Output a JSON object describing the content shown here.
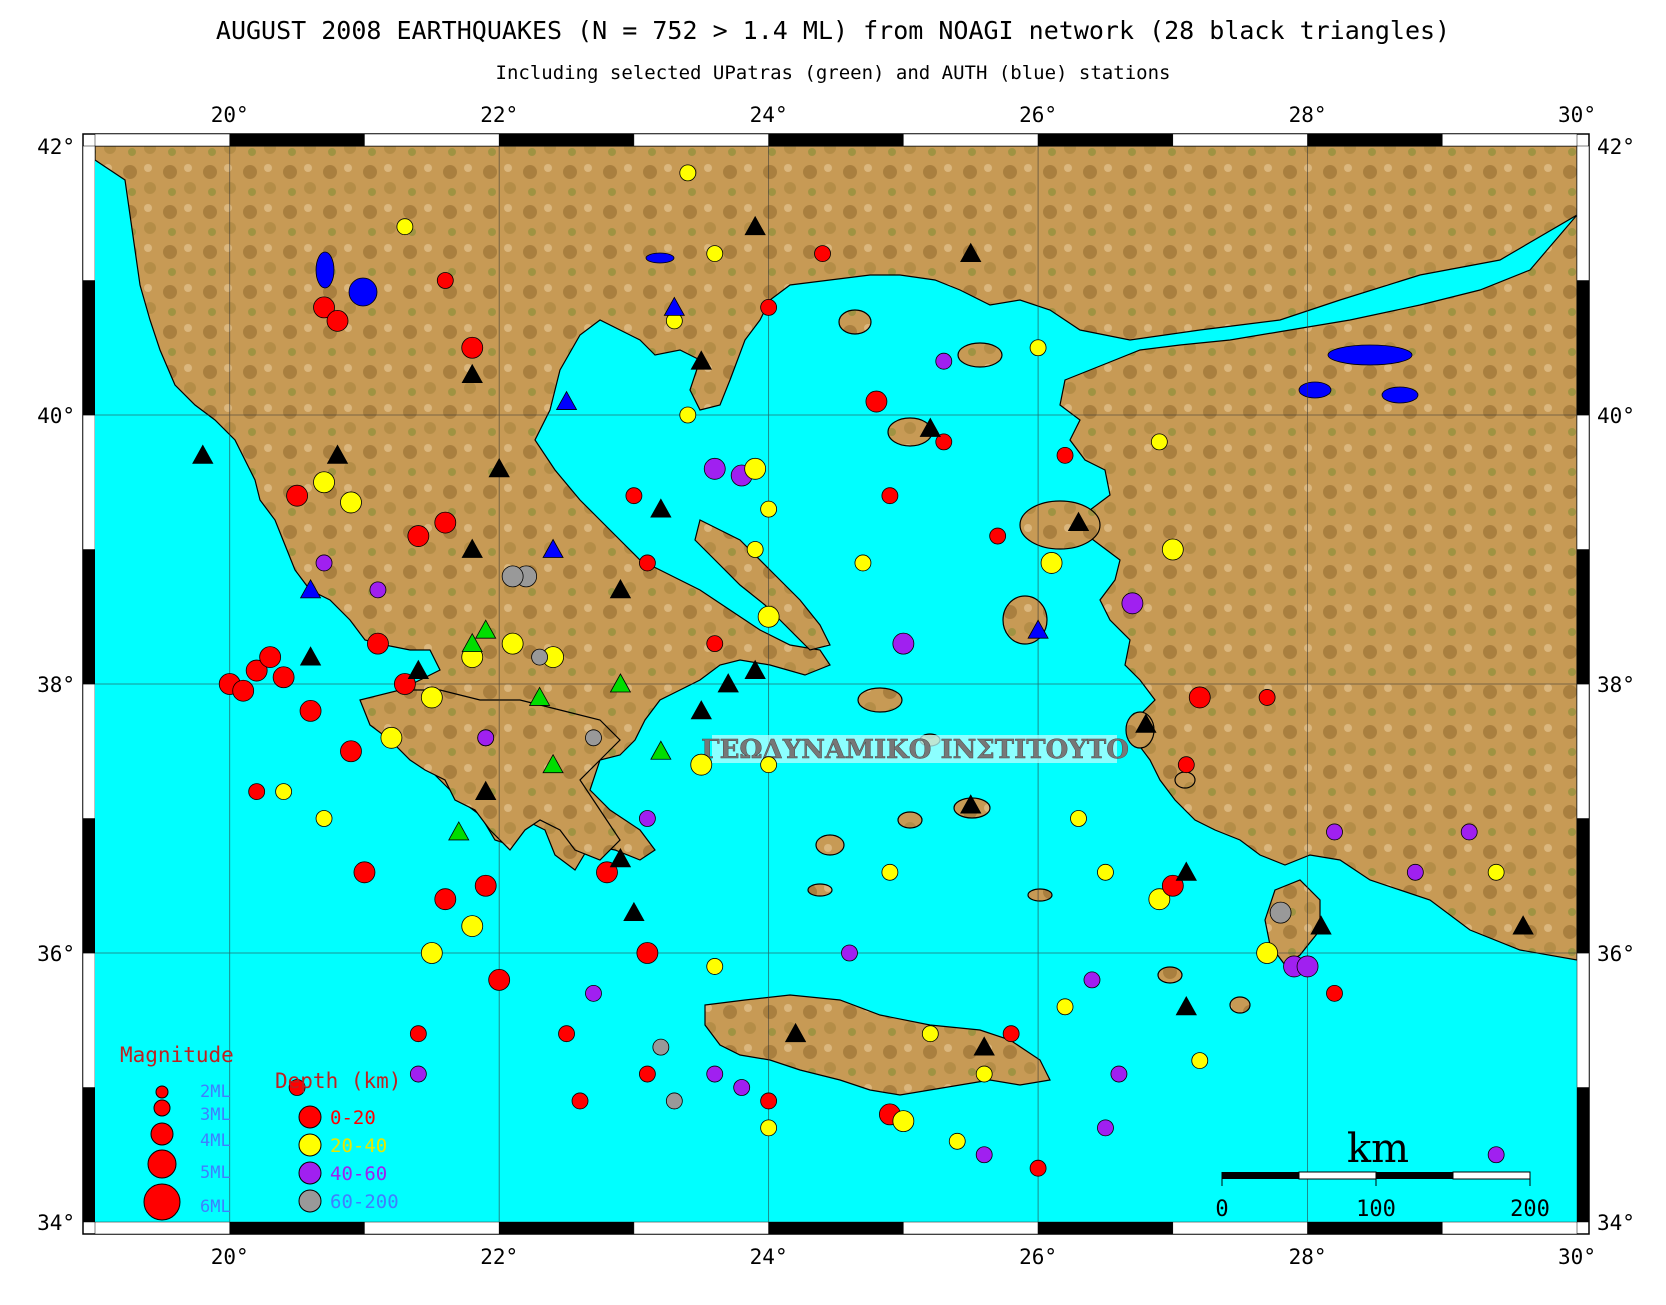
{
  "title": "AUGUST 2008 EARTHQUAKES (N = 752 > 1.4 ML) from NOAGI network (28 black triangles)",
  "subtitle": "Including selected UPatras (green) and AUTH (blue) stations",
  "watermark": "ΓΕΩΔΥΝΑΜΙΚΟ ΙΝΣΤΙΤΟΥΤΟ",
  "axes": {
    "lon_ticks": [
      "20°",
      "22°",
      "24°",
      "26°",
      "28°",
      "30°"
    ],
    "lat_ticks": [
      "42°",
      "40°",
      "38°",
      "36°",
      "34°"
    ],
    "lon_range": [
      19,
      30
    ],
    "lat_range": [
      34,
      42
    ]
  },
  "legend": {
    "magnitude_title": "Magnitude",
    "magnitudes": [
      "2ML",
      "3ML",
      "4ML",
      "5ML",
      "6ML"
    ],
    "depth_title": "Depth (km)",
    "depths": [
      {
        "label": "0-20",
        "color": "#ff0000"
      },
      {
        "label": "20-40",
        "color": "#ffff00"
      },
      {
        "label": "40-60",
        "color": "#a020f0"
      },
      {
        "label": "60-200",
        "color": "#999999"
      }
    ]
  },
  "scale_bar": {
    "unit": "km",
    "labels": [
      "0",
      "100",
      "200"
    ]
  },
  "colors": {
    "sea": "#00ffff",
    "land": "#c8a060",
    "noa_station": "#000000",
    "upatras_station": "#00dd00",
    "auth_station": "#0000ff"
  },
  "chart_data": {
    "type": "scatter",
    "title": "AUGUST 2008 EARTHQUAKES (N = 752 > 1.4 ML) from NOAGI network (28 black triangles)",
    "xlim": [
      19,
      30
    ],
    "ylim": [
      34,
      42
    ],
    "stations_noa": [
      [
        19.8,
        39.7
      ],
      [
        20.8,
        39.7
      ],
      [
        21.8,
        40.3
      ],
      [
        22.0,
        39.6
      ],
      [
        21.8,
        39.0
      ],
      [
        22.9,
        38.7
      ],
      [
        23.2,
        39.3
      ],
      [
        23.5,
        40.4
      ],
      [
        23.9,
        41.4
      ],
      [
        25.5,
        41.2
      ],
      [
        25.2,
        39.9
      ],
      [
        26.3,
        39.2
      ],
      [
        20.6,
        38.2
      ],
      [
        21.4,
        38.1
      ],
      [
        23.5,
        37.8
      ],
      [
        23.7,
        38.0
      ],
      [
        23.9,
        38.1
      ],
      [
        26.8,
        37.7
      ],
      [
        21.9,
        37.2
      ],
      [
        22.9,
        36.7
      ],
      [
        23.0,
        36.3
      ],
      [
        25.5,
        37.1
      ],
      [
        27.1,
        36.6
      ],
      [
        24.2,
        35.4
      ],
      [
        25.6,
        35.3
      ],
      [
        27.1,
        35.6
      ],
      [
        28.1,
        36.2
      ],
      [
        29.6,
        36.2
      ]
    ],
    "stations_upatras": [
      [
        21.8,
        38.3
      ],
      [
        21.9,
        38.4
      ],
      [
        22.3,
        37.9
      ],
      [
        22.4,
        37.4
      ],
      [
        22.9,
        38.0
      ],
      [
        23.2,
        37.5
      ],
      [
        21.7,
        36.9
      ]
    ],
    "stations_auth": [
      [
        20.6,
        38.7
      ],
      [
        22.4,
        39.0
      ],
      [
        22.5,
        40.1
      ],
      [
        23.3,
        40.8
      ],
      [
        26.0,
        38.4
      ]
    ],
    "events": [
      {
        "lon": 20.0,
        "lat": 38.0,
        "mag": 3,
        "depth": "0-20"
      },
      {
        "lon": 20.2,
        "lat": 38.1,
        "mag": 3,
        "depth": "0-20"
      },
      {
        "lon": 20.3,
        "lat": 38.2,
        "mag": 3,
        "depth": "0-20"
      },
      {
        "lon": 20.1,
        "lat": 37.95,
        "mag": 3,
        "depth": "0-20"
      },
      {
        "lon": 20.4,
        "lat": 38.05,
        "mag": 3,
        "depth": "0-20"
      },
      {
        "lon": 20.6,
        "lat": 37.8,
        "mag": 3,
        "depth": "0-20"
      },
      {
        "lon": 20.9,
        "lat": 37.5,
        "mag": 3,
        "depth": "0-20"
      },
      {
        "lon": 21.2,
        "lat": 37.6,
        "mag": 3,
        "depth": "20-40"
      },
      {
        "lon": 21.5,
        "lat": 37.9,
        "mag": 3,
        "depth": "20-40"
      },
      {
        "lon": 21.8,
        "lat": 38.2,
        "mag": 3,
        "depth": "20-40"
      },
      {
        "lon": 21.1,
        "lat": 38.3,
        "mag": 3,
        "depth": "0-20"
      },
      {
        "lon": 21.3,
        "lat": 38.0,
        "mag": 3,
        "depth": "0-20"
      },
      {
        "lon": 21.9,
        "lat": 37.6,
        "mag": 2,
        "depth": "0-20"
      },
      {
        "lon": 22.1,
        "lat": 38.3,
        "mag": 3,
        "depth": "20-40"
      },
      {
        "lon": 22.4,
        "lat": 38.2,
        "mag": 3,
        "depth": "20-40"
      },
      {
        "lon": 20.5,
        "lat": 39.4,
        "mag": 3,
        "depth": "0-20"
      },
      {
        "lon": 20.7,
        "lat": 39.5,
        "mag": 3,
        "depth": "20-40"
      },
      {
        "lon": 20.9,
        "lat": 39.35,
        "mag": 3,
        "depth": "20-40"
      },
      {
        "lon": 21.4,
        "lat": 39.1,
        "mag": 3,
        "depth": "0-20"
      },
      {
        "lon": 21.6,
        "lat": 39.2,
        "mag": 3,
        "depth": "0-20"
      },
      {
        "lon": 20.7,
        "lat": 40.8,
        "mag": 3,
        "depth": "0-20"
      },
      {
        "lon": 20.8,
        "lat": 40.7,
        "mag": 3,
        "depth": "0-20"
      },
      {
        "lon": 21.8,
        "lat": 40.5,
        "mag": 3,
        "depth": "0-20"
      },
      {
        "lon": 21.6,
        "lat": 41.0,
        "mag": 2,
        "depth": "0-20"
      },
      {
        "lon": 21.3,
        "lat": 41.4,
        "mag": 2,
        "depth": "20-40"
      },
      {
        "lon": 23.6,
        "lat": 39.6,
        "mag": 3,
        "depth": "40-60"
      },
      {
        "lon": 23.8,
        "lat": 39.55,
        "mag": 3,
        "depth": "40-60"
      },
      {
        "lon": 23.9,
        "lat": 39.6,
        "mag": 3,
        "depth": "20-40"
      },
      {
        "lon": 24.0,
        "lat": 39.3,
        "mag": 2,
        "depth": "20-40"
      },
      {
        "lon": 23.3,
        "lat": 40.7,
        "mag": 2,
        "depth": "20-40"
      },
      {
        "lon": 24.8,
        "lat": 40.1,
        "mag": 3,
        "depth": "0-20"
      },
      {
        "lon": 25.3,
        "lat": 40.4,
        "mag": 2,
        "depth": "40-60"
      },
      {
        "lon": 26.0,
        "lat": 40.5,
        "mag": 2,
        "depth": "20-40"
      },
      {
        "lon": 26.2,
        "lat": 39.7,
        "mag": 2,
        "depth": "0-20"
      },
      {
        "lon": 26.1,
        "lat": 38.9,
        "mag": 3,
        "depth": "20-40"
      },
      {
        "lon": 25.0,
        "lat": 38.3,
        "mag": 3,
        "depth": "40-60"
      },
      {
        "lon": 26.7,
        "lat": 38.6,
        "mag": 3,
        "depth": "40-60"
      },
      {
        "lon": 27.0,
        "lat": 39.0,
        "mag": 3,
        "depth": "20-40"
      },
      {
        "lon": 26.9,
        "lat": 39.8,
        "mag": 2,
        "depth": "20-40"
      },
      {
        "lon": 27.7,
        "lat": 37.9,
        "mag": 2,
        "depth": "0-20"
      },
      {
        "lon": 21.5,
        "lat": 36.0,
        "mag": 3,
        "depth": "20-40"
      },
      {
        "lon": 21.8,
        "lat": 36.2,
        "mag": 3,
        "depth": "20-40"
      },
      {
        "lon": 21.9,
        "lat": 36.5,
        "mag": 3,
        "depth": "0-20"
      },
      {
        "lon": 21.6,
        "lat": 36.4,
        "mag": 3,
        "depth": "0-20"
      },
      {
        "lon": 22.0,
        "lat": 35.8,
        "mag": 3,
        "depth": "0-20"
      },
      {
        "lon": 22.8,
        "lat": 36.6,
        "mag": 3,
        "depth": "0-20"
      },
      {
        "lon": 23.1,
        "lat": 36.0,
        "mag": 3,
        "depth": "0-20"
      },
      {
        "lon": 23.6,
        "lat": 35.9,
        "mag": 2,
        "depth": "20-40"
      },
      {
        "lon": 22.7,
        "lat": 35.7,
        "mag": 2,
        "depth": "40-60"
      },
      {
        "lon": 23.2,
        "lat": 35.3,
        "mag": 2,
        "depth": "60-200"
      },
      {
        "lon": 23.6,
        "lat": 35.1,
        "mag": 2,
        "depth": "40-60"
      },
      {
        "lon": 23.3,
        "lat": 34.9,
        "mag": 2,
        "depth": "60-200"
      },
      {
        "lon": 23.8,
        "lat": 35.0,
        "mag": 2,
        "depth": "40-60"
      },
      {
        "lon": 24.0,
        "lat": 34.9,
        "mag": 2,
        "depth": "0-20"
      },
      {
        "lon": 24.0,
        "lat": 34.7,
        "mag": 2,
        "depth": "20-40"
      },
      {
        "lon": 24.9,
        "lat": 34.8,
        "mag": 3,
        "depth": "0-20"
      },
      {
        "lon": 25.0,
        "lat": 34.75,
        "mag": 3,
        "depth": "20-40"
      },
      {
        "lon": 25.4,
        "lat": 34.6,
        "mag": 2,
        "depth": "20-40"
      },
      {
        "lon": 25.6,
        "lat": 34.5,
        "mag": 2,
        "depth": "40-60"
      },
      {
        "lon": 26.0,
        "lat": 34.4,
        "mag": 2,
        "depth": "0-20"
      },
      {
        "lon": 26.2,
        "lat": 35.6,
        "mag": 2,
        "depth": "20-40"
      },
      {
        "lon": 26.4,
        "lat": 35.8,
        "mag": 2,
        "depth": "40-60"
      },
      {
        "lon": 26.6,
        "lat": 35.1,
        "mag": 2,
        "depth": "40-60"
      },
      {
        "lon": 26.5,
        "lat": 34.7,
        "mag": 2,
        "depth": "40-60"
      },
      {
        "lon": 27.2,
        "lat": 35.2,
        "mag": 2,
        "depth": "20-40"
      },
      {
        "lon": 27.7,
        "lat": 36.0,
        "mag": 3,
        "depth": "20-40"
      },
      {
        "lon": 27.9,
        "lat": 35.9,
        "mag": 3,
        "depth": "40-60"
      },
      {
        "lon": 28.0,
        "lat": 35.9,
        "mag": 3,
        "depth": "40-60"
      },
      {
        "lon": 27.8,
        "lat": 36.3,
        "mag": 3,
        "depth": "60-200"
      },
      {
        "lon": 28.2,
        "lat": 35.7,
        "mag": 2,
        "depth": "0-20"
      },
      {
        "lon": 28.2,
        "lat": 36.9,
        "mag": 2,
        "depth": "40-60"
      },
      {
        "lon": 28.8,
        "lat": 36.6,
        "mag": 2,
        "depth": "40-60"
      },
      {
        "lon": 29.2,
        "lat": 36.9,
        "mag": 2,
        "depth": "40-60"
      },
      {
        "lon": 29.4,
        "lat": 36.6,
        "mag": 2,
        "depth": "20-40"
      },
      {
        "lon": 29.4,
        "lat": 34.5,
        "mag": 2,
        "depth": "40-60"
      },
      {
        "lon": 26.9,
        "lat": 36.4,
        "mag": 3,
        "depth": "20-40"
      },
      {
        "lon": 27.0,
        "lat": 36.5,
        "mag": 3,
        "depth": "0-20"
      },
      {
        "lon": 26.5,
        "lat": 36.6,
        "mag": 2,
        "depth": "20-40"
      },
      {
        "lon": 26.3,
        "lat": 37.0,
        "mag": 2,
        "depth": "20-40"
      },
      {
        "lon": 27.1,
        "lat": 37.4,
        "mag": 2,
        "depth": "0-20"
      },
      {
        "lon": 24.6,
        "lat": 36.0,
        "mag": 2,
        "depth": "40-60"
      },
      {
        "lon": 24.9,
        "lat": 36.6,
        "mag": 2,
        "depth": "20-40"
      },
      {
        "lon": 25.2,
        "lat": 35.4,
        "mag": 2,
        "depth": "20-40"
      },
      {
        "lon": 25.8,
        "lat": 35.4,
        "mag": 2,
        "depth": "0-20"
      },
      {
        "lon": 25.6,
        "lat": 35.1,
        "mag": 2,
        "depth": "20-40"
      },
      {
        "lon": 24.0,
        "lat": 37.4,
        "mag": 2,
        "depth": "20-40"
      },
      {
        "lon": 23.5,
        "lat": 37.4,
        "mag": 3,
        "depth": "20-40"
      },
      {
        "lon": 23.1,
        "lat": 37.0,
        "mag": 2,
        "depth": "40-60"
      },
      {
        "lon": 22.7,
        "lat": 37.6,
        "mag": 2,
        "depth": "60-200"
      },
      {
        "lon": 22.2,
        "lat": 38.8,
        "mag": 3,
        "depth": "60-200"
      },
      {
        "lon": 22.1,
        "lat": 38.8,
        "mag": 3,
        "depth": "60-200"
      },
      {
        "lon": 21.9,
        "lat": 37.6,
        "mag": 2,
        "depth": "40-60"
      },
      {
        "lon": 21.1,
        "lat": 38.7,
        "mag": 2,
        "depth": "40-60"
      },
      {
        "lon": 20.7,
        "lat": 38.9,
        "mag": 2,
        "depth": "40-60"
      },
      {
        "lon": 22.3,
        "lat": 38.2,
        "mag": 2,
        "depth": "60-200"
      },
      {
        "lon": 20.2,
        "lat": 37.2,
        "mag": 2,
        "depth": "0-20"
      },
      {
        "lon": 20.4,
        "lat": 37.2,
        "mag": 2,
        "depth": "20-40"
      },
      {
        "lon": 20.7,
        "lat": 37.0,
        "mag": 2,
        "depth": "20-40"
      },
      {
        "lon": 21.0,
        "lat": 36.6,
        "mag": 3,
        "depth": "0-20"
      },
      {
        "lon": 21.4,
        "lat": 35.4,
        "mag": 2,
        "depth": "0-20"
      },
      {
        "lon": 21.4,
        "lat": 35.1,
        "mag": 2,
        "depth": "40-60"
      },
      {
        "lon": 20.5,
        "lat": 35.0,
        "mag": 2,
        "depth": "0-20"
      },
      {
        "lon": 22.5,
        "lat": 35.4,
        "mag": 2,
        "depth": "0-20"
      },
      {
        "lon": 23.1,
        "lat": 35.1,
        "mag": 2,
        "depth": "0-20"
      },
      {
        "lon": 22.6,
        "lat": 34.9,
        "mag": 2,
        "depth": "0-20"
      },
      {
        "lon": 23.4,
        "lat": 41.8,
        "mag": 2,
        "depth": "20-40"
      },
      {
        "lon": 23.6,
        "lat": 41.2,
        "mag": 2,
        "depth": "20-40"
      },
      {
        "lon": 24.4,
        "lat": 41.2,
        "mag": 2,
        "depth": "0-20"
      },
      {
        "lon": 24.0,
        "lat": 40.8,
        "mag": 2,
        "depth": "0-20"
      },
      {
        "lon": 23.4,
        "lat": 40.0,
        "mag": 2,
        "depth": "20-40"
      },
      {
        "lon": 23.0,
        "lat": 39.4,
        "mag": 2,
        "depth": "0-20"
      },
      {
        "lon": 23.1,
        "lat": 38.9,
        "mag": 2,
        "depth": "0-20"
      },
      {
        "lon": 23.6,
        "lat": 38.3,
        "mag": 2,
        "depth": "0-20"
      },
      {
        "lon": 24.0,
        "lat": 38.5,
        "mag": 3,
        "depth": "20-40"
      },
      {
        "lon": 23.9,
        "lat": 39.0,
        "mag": 2,
        "depth": "20-40"
      },
      {
        "lon": 25.3,
        "lat": 39.8,
        "mag": 2,
        "depth": "0-20"
      },
      {
        "lon": 24.7,
        "lat": 38.9,
        "mag": 2,
        "depth": "20-40"
      },
      {
        "lon": 24.9,
        "lat": 39.4,
        "mag": 2,
        "depth": "0-20"
      },
      {
        "lon": 25.7,
        "lat": 39.1,
        "mag": 2,
        "depth": "0-20"
      },
      {
        "lon": 27.2,
        "lat": 37.9,
        "mag": 3,
        "depth": "0-20"
      }
    ]
  }
}
